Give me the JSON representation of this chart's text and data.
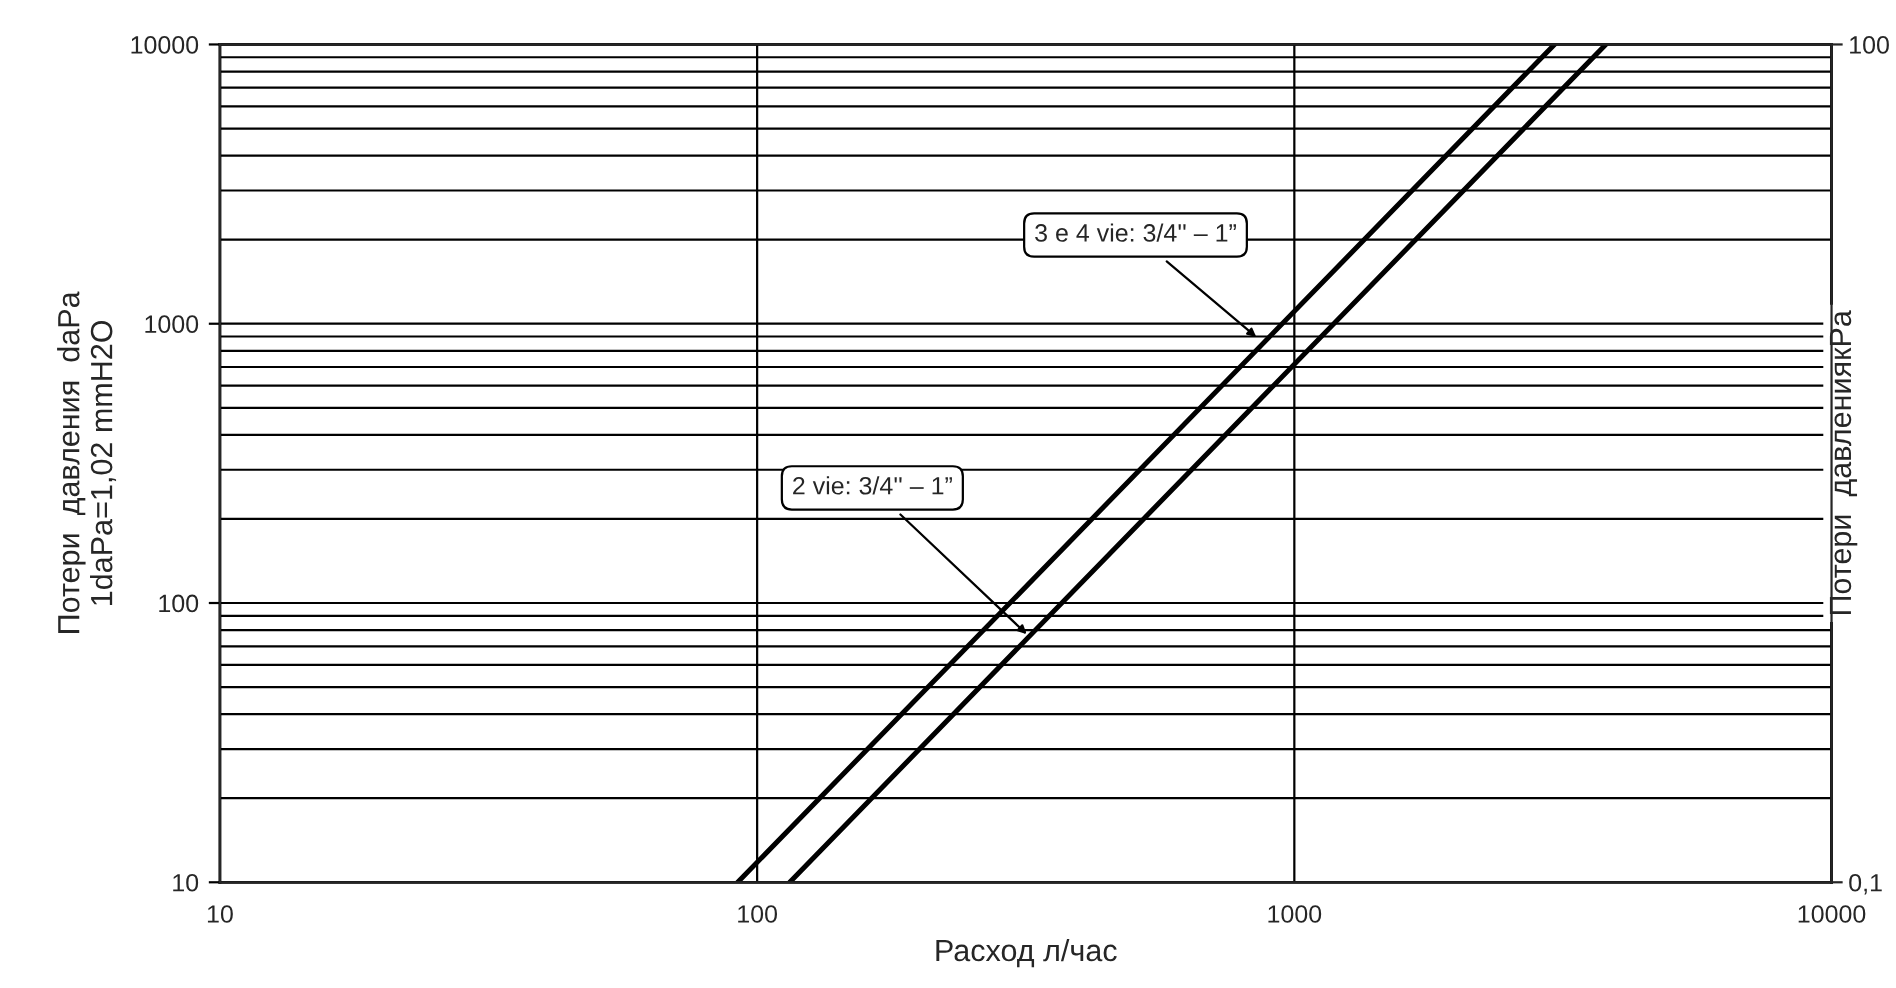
{
  "chart_data": {
    "type": "line",
    "xlabel": "Расход л/час",
    "ylabel": "Потери  давления  daPa\n1daPa=1,02 mmH2O",
    "y2label": "Потери  давлениякPa",
    "log": "xy",
    "xlim": [
      10,
      10000
    ],
    "xticks": [
      10,
      100,
      1000,
      10000
    ],
    "ylim": [
      10,
      10000
    ],
    "yticks": [
      10,
      100,
      1000,
      10000
    ],
    "y2lim": [
      0.1,
      100
    ],
    "y2ticks": [
      {
        "value": 0.1,
        "label": "0,1"
      },
      100
    ],
    "grid": true,
    "line_style": "solid",
    "series": [
      {
        "color": "#000000",
        "x": [
          92,
          3050
        ],
        "values": [
          10,
          10000
        ]
      },
      {
        "color": "#000000",
        "x": [
          115,
          3800
        ],
        "values": [
          10,
          10000
        ]
      }
    ],
    "annotations": [
      {
        "text": "3 e 4 vie: 3/4'' – 1”",
        "x": 865,
        "y": 870
      },
      {
        "text": "2 vie: 3/4'' – 1”",
        "x": 323,
        "y": 75
      }
    ]
  }
}
